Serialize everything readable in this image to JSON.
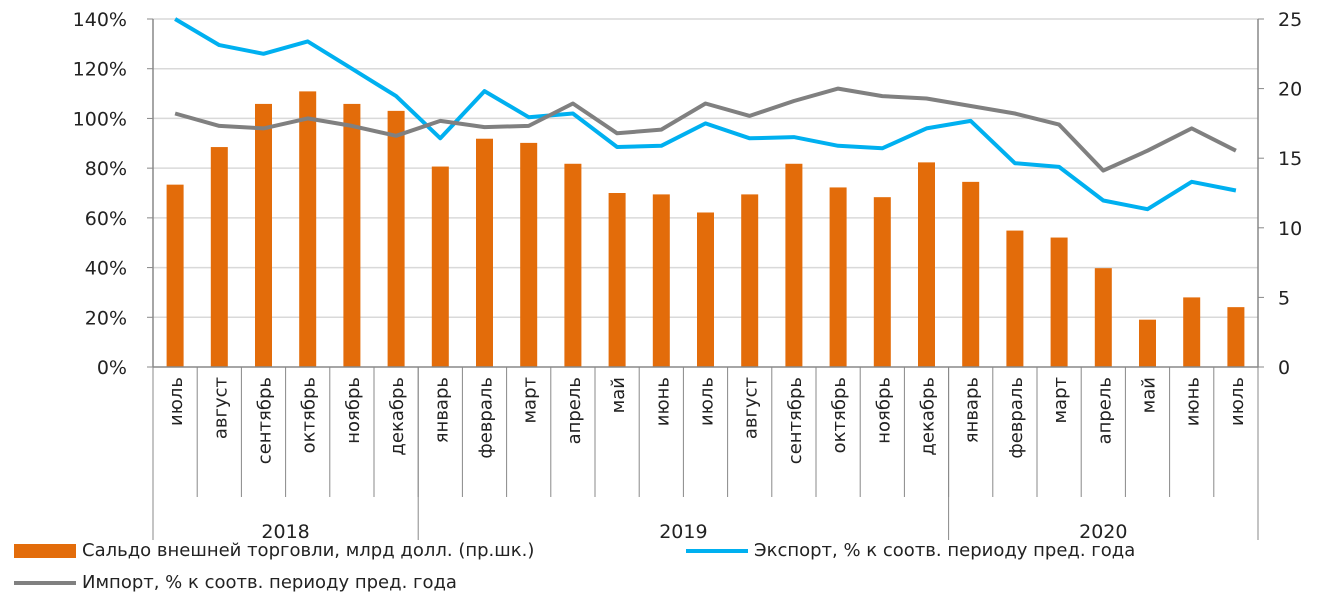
{
  "chart_data": {
    "type": "bar+line",
    "categories": [
      "июль",
      "август",
      "сентябрь",
      "октябрь",
      "ноябрь",
      "декабрь",
      "январь",
      "февраль",
      "март",
      "апрель",
      "май",
      "июнь",
      "июль",
      "август",
      "сентябрь",
      "октябрь",
      "ноябрь",
      "декабрь",
      "январь",
      "февраль",
      "март",
      "апрель",
      "май",
      "июнь",
      "июль"
    ],
    "years": [
      {
        "label": "2018",
        "count": 6
      },
      {
        "label": "2019",
        "count": 12
      },
      {
        "label": "2020",
        "count": 7
      }
    ],
    "left_axis": {
      "ylim": [
        0,
        140
      ],
      "ticks": [
        "0%",
        "20%",
        "40%",
        "60%",
        "80%",
        "100%",
        "120%",
        "140%"
      ]
    },
    "right_axis": {
      "ylim": [
        0,
        25
      ],
      "ticks": [
        "0",
        "5",
        "10",
        "15",
        "20",
        "25"
      ]
    },
    "grid": true,
    "legend_position": "bottom",
    "series": [
      {
        "name": "Сальдо внешней торговли, млрд долл. (пр.шк.)",
        "type": "bar",
        "axis": "right",
        "color": "#E36C0A",
        "values": [
          13.1,
          15.8,
          18.9,
          19.8,
          18.9,
          18.4,
          14.4,
          16.4,
          16.1,
          14.6,
          12.5,
          12.4,
          11.1,
          12.4,
          14.6,
          12.9,
          12.2,
          14.7,
          13.3,
          9.8,
          9.3,
          7.1,
          3.4,
          5.0,
          4.3
        ]
      },
      {
        "name": "Экспорт, % к соотв. периоду пред. года",
        "type": "line",
        "axis": "left",
        "color": "#00B0F0",
        "values": [
          140,
          129.5,
          126,
          131,
          120,
          109,
          92,
          111,
          100.5,
          102,
          88.5,
          89,
          98,
          92,
          92.5,
          89,
          88,
          96,
          99,
          82,
          80.5,
          67,
          63.5,
          74.5,
          71
        ]
      },
      {
        "name": "Импорт, % к соотв. периоду пред. года",
        "type": "line",
        "axis": "left",
        "color": "#808080",
        "values": [
          102,
          97,
          96,
          100,
          97,
          93,
          99,
          96.5,
          97,
          106,
          94,
          95.5,
          106,
          101,
          107,
          112,
          109,
          108,
          105,
          102,
          97.5,
          79,
          87,
          96,
          87
        ]
      }
    ]
  }
}
